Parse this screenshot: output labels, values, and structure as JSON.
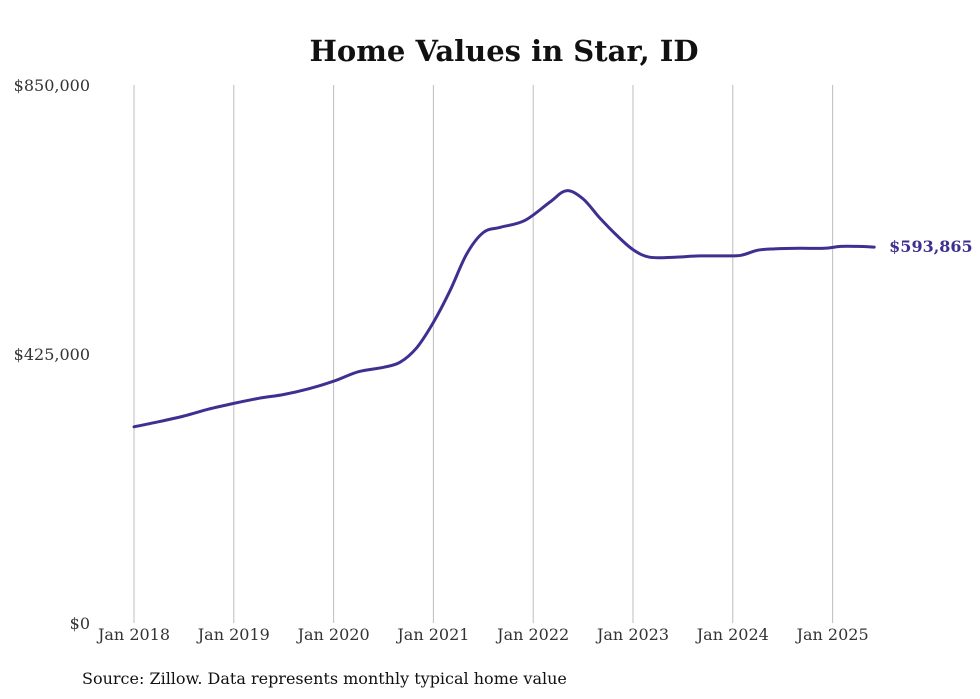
{
  "chart_data": {
    "type": "line",
    "title": "Home Values in Star, ID",
    "xlabel": "",
    "ylabel": "",
    "ylim": [
      0,
      850000
    ],
    "xlim": [
      "2018-01",
      "2025-06"
    ],
    "grid": {
      "vertical": true,
      "horizontal": false
    },
    "y_ticks": [
      {
        "value": 0,
        "label": "$0"
      },
      {
        "value": 425000,
        "label": "$425,000"
      },
      {
        "value": 850000,
        "label": "$850,000"
      }
    ],
    "x_ticks": [
      {
        "value": "2018-01",
        "label": "Jan 2018"
      },
      {
        "value": "2019-01",
        "label": "Jan 2019"
      },
      {
        "value": "2020-01",
        "label": "Jan 2020"
      },
      {
        "value": "2021-01",
        "label": "Jan 2021"
      },
      {
        "value": "2022-01",
        "label": "Jan 2022"
      },
      {
        "value": "2023-01",
        "label": "Jan 2023"
      },
      {
        "value": "2024-01",
        "label": "Jan 2024"
      },
      {
        "value": "2025-01",
        "label": "Jan 2025"
      }
    ],
    "series": [
      {
        "color": "#3d3090",
        "end_label": "$593,865",
        "points": [
          {
            "x": "2018-01",
            "y": 310000
          },
          {
            "x": "2018-04",
            "y": 318000
          },
          {
            "x": "2018-07",
            "y": 327000
          },
          {
            "x": "2018-10",
            "y": 338000
          },
          {
            "x": "2019-01",
            "y": 347000
          },
          {
            "x": "2019-04",
            "y": 355000
          },
          {
            "x": "2019-07",
            "y": 361000
          },
          {
            "x": "2019-10",
            "y": 370000
          },
          {
            "x": "2020-01",
            "y": 382000
          },
          {
            "x": "2020-04",
            "y": 397000
          },
          {
            "x": "2020-07",
            "y": 404000
          },
          {
            "x": "2020-09",
            "y": 412000
          },
          {
            "x": "2020-11",
            "y": 435000
          },
          {
            "x": "2021-01",
            "y": 475000
          },
          {
            "x": "2021-03",
            "y": 525000
          },
          {
            "x": "2021-05",
            "y": 583000
          },
          {
            "x": "2021-07",
            "y": 617000
          },
          {
            "x": "2021-09",
            "y": 625000
          },
          {
            "x": "2021-12",
            "y": 636000
          },
          {
            "x": "2022-03",
            "y": 665000
          },
          {
            "x": "2022-05",
            "y": 683000
          },
          {
            "x": "2022-07",
            "y": 670000
          },
          {
            "x": "2022-09",
            "y": 640000
          },
          {
            "x": "2022-11",
            "y": 613000
          },
          {
            "x": "2023-01",
            "y": 590000
          },
          {
            "x": "2023-03",
            "y": 578000
          },
          {
            "x": "2023-06",
            "y": 578000
          },
          {
            "x": "2023-09",
            "y": 580000
          },
          {
            "x": "2023-12",
            "y": 580000
          },
          {
            "x": "2024-02",
            "y": 581000
          },
          {
            "x": "2024-04",
            "y": 589000
          },
          {
            "x": "2024-06",
            "y": 591000
          },
          {
            "x": "2024-09",
            "y": 592000
          },
          {
            "x": "2024-12",
            "y": 592000
          },
          {
            "x": "2025-02",
            "y": 595000
          },
          {
            "x": "2025-04",
            "y": 595000
          },
          {
            "x": "2025-06",
            "y": 593865
          }
        ]
      }
    ]
  },
  "source_note": "Source: Zillow. Data represents monthly typical home value"
}
